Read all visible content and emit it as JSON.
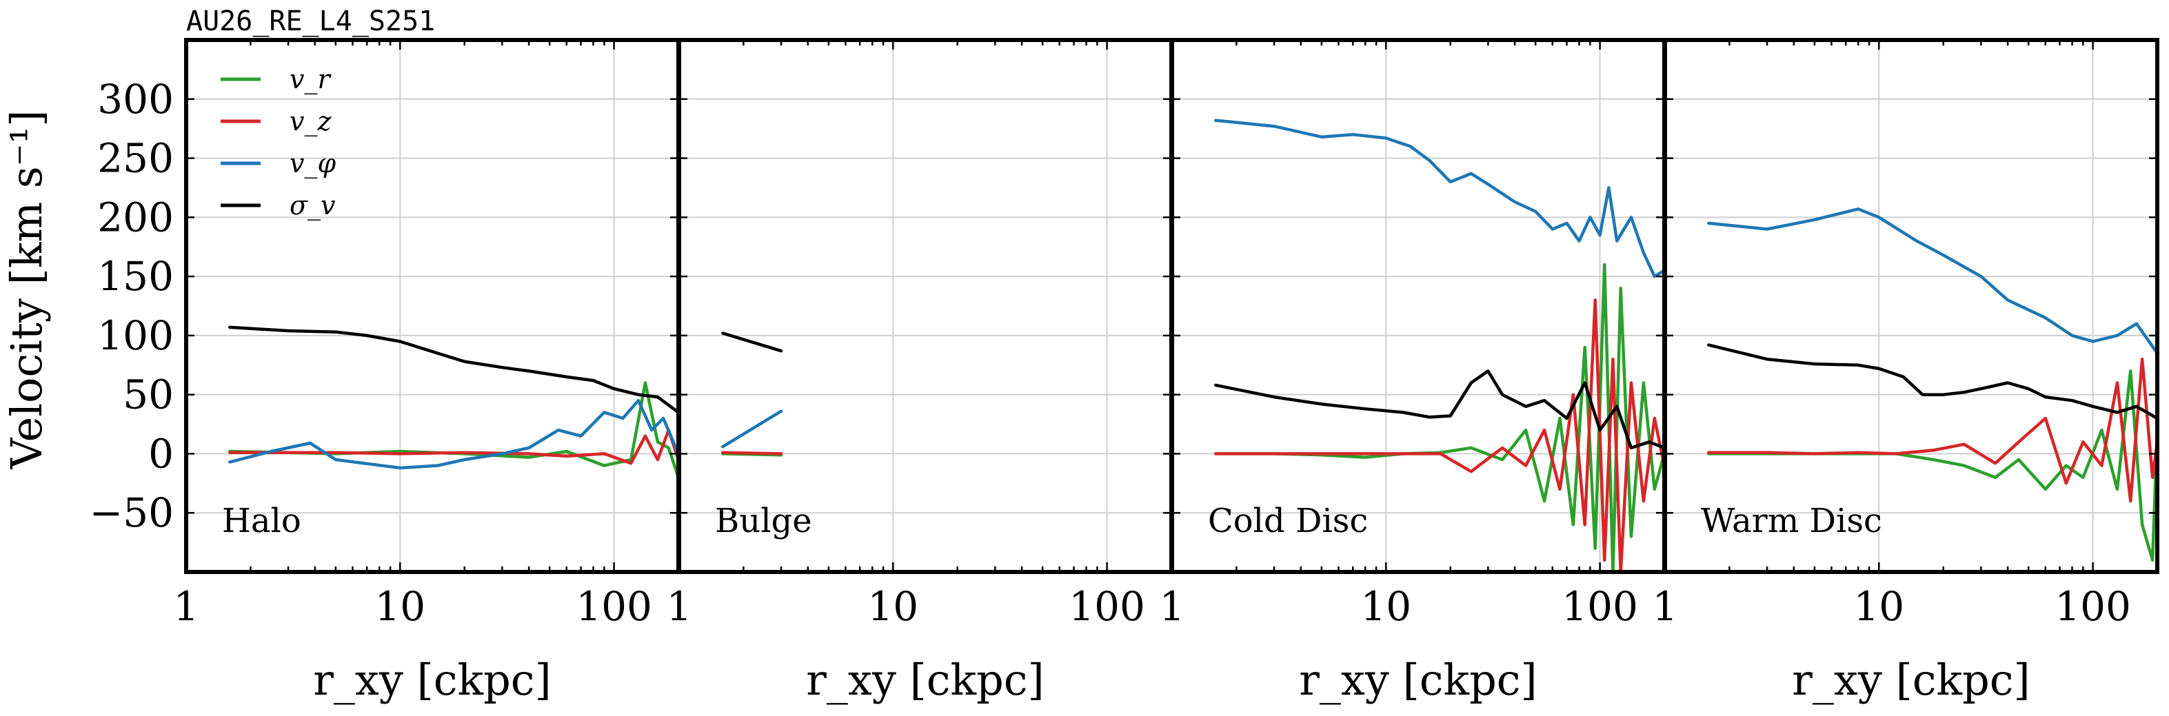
{
  "figure_title": "AU26_RE_L4_S251",
  "ylabel": "Velocity [km s⁻¹]",
  "xlabel": "r_xy [ckpc]",
  "legend": [
    {
      "label": "v_r",
      "color": "#2ca02c"
    },
    {
      "label": "v_z",
      "color": "#d62728"
    },
    {
      "label": "v_φ",
      "color": "#1f77b4"
    },
    {
      "label": "σ_v",
      "color": "#000000"
    }
  ],
  "chart_data": {
    "type": "line",
    "x_scale": "log",
    "xlim": [
      1,
      200
    ],
    "ylim": [
      -100,
      350
    ],
    "x_ticks": [
      1,
      10,
      100
    ],
    "x_tick_labels": [
      "1",
      "10",
      "100"
    ],
    "y_ticks": [
      -50,
      0,
      50,
      100,
      150,
      200,
      250,
      300
    ],
    "y_tick_labels": [
      "−50",
      "0",
      "50",
      "100",
      "150",
      "200",
      "250",
      "300"
    ],
    "grid": true,
    "legend_position": "top-left",
    "panels": [
      {
        "label": "Halo",
        "series": [
          {
            "name": "v_r",
            "color": "#2ca02c",
            "x": [
              1.6,
              3,
              5,
              10,
              20,
              40,
              60,
              90,
              120,
              140,
              160,
              180,
              200
            ],
            "y": [
              2,
              1,
              0,
              2,
              0,
              -3,
              2,
              -10,
              -5,
              60,
              10,
              5,
              -20
            ]
          },
          {
            "name": "v_z",
            "color": "#d62728",
            "x": [
              1.6,
              3,
              5,
              10,
              20,
              40,
              60,
              90,
              120,
              140,
              160,
              180,
              200
            ],
            "y": [
              1,
              1,
              1,
              0,
              1,
              0,
              -2,
              0,
              -8,
              15,
              -5,
              20,
              -5
            ]
          },
          {
            "name": "v_φ",
            "color": "#1f77b4",
            "x": [
              1.6,
              2.5,
              3.8,
              5,
              10,
              15,
              20,
              30,
              40,
              55,
              70,
              90,
              110,
              130,
              150,
              170,
              200
            ],
            "y": [
              -7,
              2,
              9,
              -5,
              -12,
              -10,
              -5,
              0,
              5,
              20,
              15,
              35,
              30,
              45,
              20,
              30,
              0
            ]
          },
          {
            "name": "σ_v",
            "color": "#000000",
            "x": [
              1.6,
              3,
              5,
              7,
              10,
              15,
              20,
              30,
              40,
              60,
              80,
              100,
              130,
              160,
              200
            ],
            "y": [
              107,
              104,
              103,
              100,
              95,
              85,
              78,
              73,
              70,
              65,
              62,
              55,
              50,
              48,
              35
            ]
          }
        ]
      },
      {
        "label": "Bulge",
        "series": [
          {
            "name": "v_r",
            "color": "#2ca02c",
            "x": [
              1.6,
              3
            ],
            "y": [
              0,
              -1
            ]
          },
          {
            "name": "v_z",
            "color": "#d62728",
            "x": [
              1.6,
              3
            ],
            "y": [
              1,
              0
            ]
          },
          {
            "name": "v_φ",
            "color": "#1f77b4",
            "x": [
              1.6,
              3
            ],
            "y": [
              6,
              36
            ]
          },
          {
            "name": "σ_v",
            "color": "#000000",
            "x": [
              1.6,
              3
            ],
            "y": [
              102,
              87
            ]
          }
        ]
      },
      {
        "label": "Cold Disc",
        "series": [
          {
            "name": "v_r",
            "color": "#2ca02c",
            "x": [
              1.6,
              3,
              5,
              8,
              12,
              18,
              25,
              35,
              45,
              55,
              65,
              75,
              85,
              95,
              105,
              115,
              125,
              140,
              160,
              180,
              200
            ],
            "y": [
              0,
              0,
              -1,
              -3,
              0,
              1,
              5,
              -5,
              20,
              -40,
              30,
              -60,
              90,
              -80,
              160,
              -100,
              140,
              -70,
              60,
              -30,
              0
            ]
          },
          {
            "name": "v_z",
            "color": "#d62728",
            "x": [
              1.6,
              3,
              5,
              8,
              12,
              18,
              25,
              35,
              45,
              55,
              65,
              75,
              85,
              95,
              105,
              115,
              125,
              140,
              160,
              180,
              200
            ],
            "y": [
              0,
              0,
              0,
              0,
              0,
              0,
              -15,
              5,
              -10,
              20,
              -30,
              50,
              -60,
              130,
              -90,
              80,
              -100,
              60,
              -40,
              30,
              -10
            ]
          },
          {
            "name": "v_φ",
            "color": "#1f77b4",
            "x": [
              1.6,
              3,
              5,
              7,
              10,
              13,
              16,
              20,
              25,
              30,
              40,
              50,
              60,
              70,
              80,
              90,
              100,
              110,
              120,
              140,
              160,
              180,
              200
            ],
            "y": [
              282,
              277,
              268,
              270,
              267,
              260,
              248,
              230,
              237,
              228,
              213,
              205,
              190,
              195,
              180,
              200,
              185,
              225,
              180,
              200,
              170,
              150,
              155
            ]
          },
          {
            "name": "σ_v",
            "color": "#000000",
            "x": [
              1.6,
              3,
              5,
              8,
              12,
              16,
              20,
              25,
              30,
              35,
              45,
              55,
              70,
              85,
              100,
              120,
              140,
              170,
              200
            ],
            "y": [
              58,
              48,
              42,
              38,
              35,
              31,
              32,
              60,
              70,
              50,
              40,
              45,
              30,
              60,
              20,
              40,
              5,
              10,
              5
            ]
          }
        ]
      },
      {
        "label": "Warm Disc",
        "series": [
          {
            "name": "v_r",
            "color": "#2ca02c",
            "x": [
              1.6,
              3,
              5,
              8,
              12,
              18,
              25,
              35,
              45,
              60,
              75,
              90,
              110,
              130,
              150,
              170,
              190,
              200
            ],
            "y": [
              0,
              0,
              0,
              0,
              0,
              -5,
              -10,
              -20,
              -5,
              -30,
              -10,
              -20,
              20,
              -30,
              70,
              -60,
              -90,
              20
            ]
          },
          {
            "name": "v_z",
            "color": "#d62728",
            "x": [
              1.6,
              3,
              5,
              8,
              12,
              18,
              25,
              35,
              45,
              60,
              75,
              90,
              110,
              130,
              150,
              170,
              190,
              200
            ],
            "y": [
              1,
              1,
              0,
              1,
              0,
              3,
              8,
              -8,
              10,
              30,
              -25,
              10,
              -10,
              60,
              -40,
              80,
              -20,
              10
            ]
          },
          {
            "name": "v_φ",
            "color": "#1f77b4",
            "x": [
              1.6,
              3,
              5,
              8,
              10,
              15,
              20,
              30,
              40,
              60,
              80,
              100,
              130,
              160,
              200
            ],
            "y": [
              195,
              190,
              198,
              207,
              200,
              180,
              168,
              150,
              130,
              115,
              100,
              95,
              100,
              110,
              85
            ]
          },
          {
            "name": "σ_v",
            "color": "#000000",
            "x": [
              1.6,
              3,
              5,
              8,
              10,
              13,
              16,
              20,
              25,
              30,
              40,
              50,
              60,
              80,
              100,
              130,
              160,
              200
            ],
            "y": [
              92,
              80,
              76,
              75,
              72,
              65,
              50,
              50,
              52,
              55,
              60,
              55,
              48,
              45,
              40,
              35,
              40,
              30
            ]
          }
        ]
      }
    ]
  }
}
